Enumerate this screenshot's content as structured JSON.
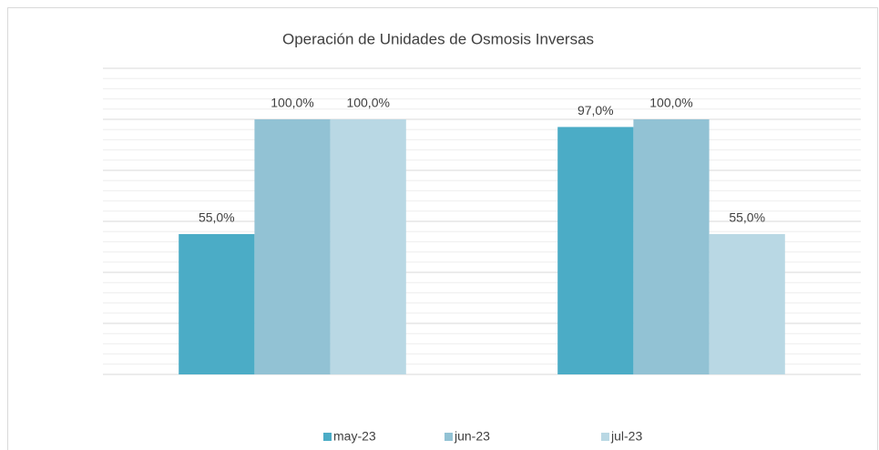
{
  "chart_data": {
    "type": "bar",
    "title": "Operación de Unidades de Osmosis Inversas",
    "categories": [
      null,
      null
    ],
    "series": [
      {
        "name": "may-23",
        "color": "#4bacc6",
        "values": [
          55,
          97
        ],
        "value_labels": [
          "55,0%",
          "97,0%"
        ]
      },
      {
        "name": "jun-23",
        "color": "#92c2d4",
        "values": [
          100,
          100
        ],
        "value_labels": [
          "100,0%",
          "100,0%"
        ]
      },
      {
        "name": "jul-23",
        "color": "#b9d8e4",
        "values": [
          100,
          55
        ],
        "value_labels": [
          "100,0%",
          "55,0%"
        ]
      }
    ],
    "ylim": [
      0,
      120
    ],
    "yticks": [
      0,
      20,
      40,
      60,
      80,
      100,
      120
    ],
    "grid": true,
    "legend": "bottom"
  }
}
